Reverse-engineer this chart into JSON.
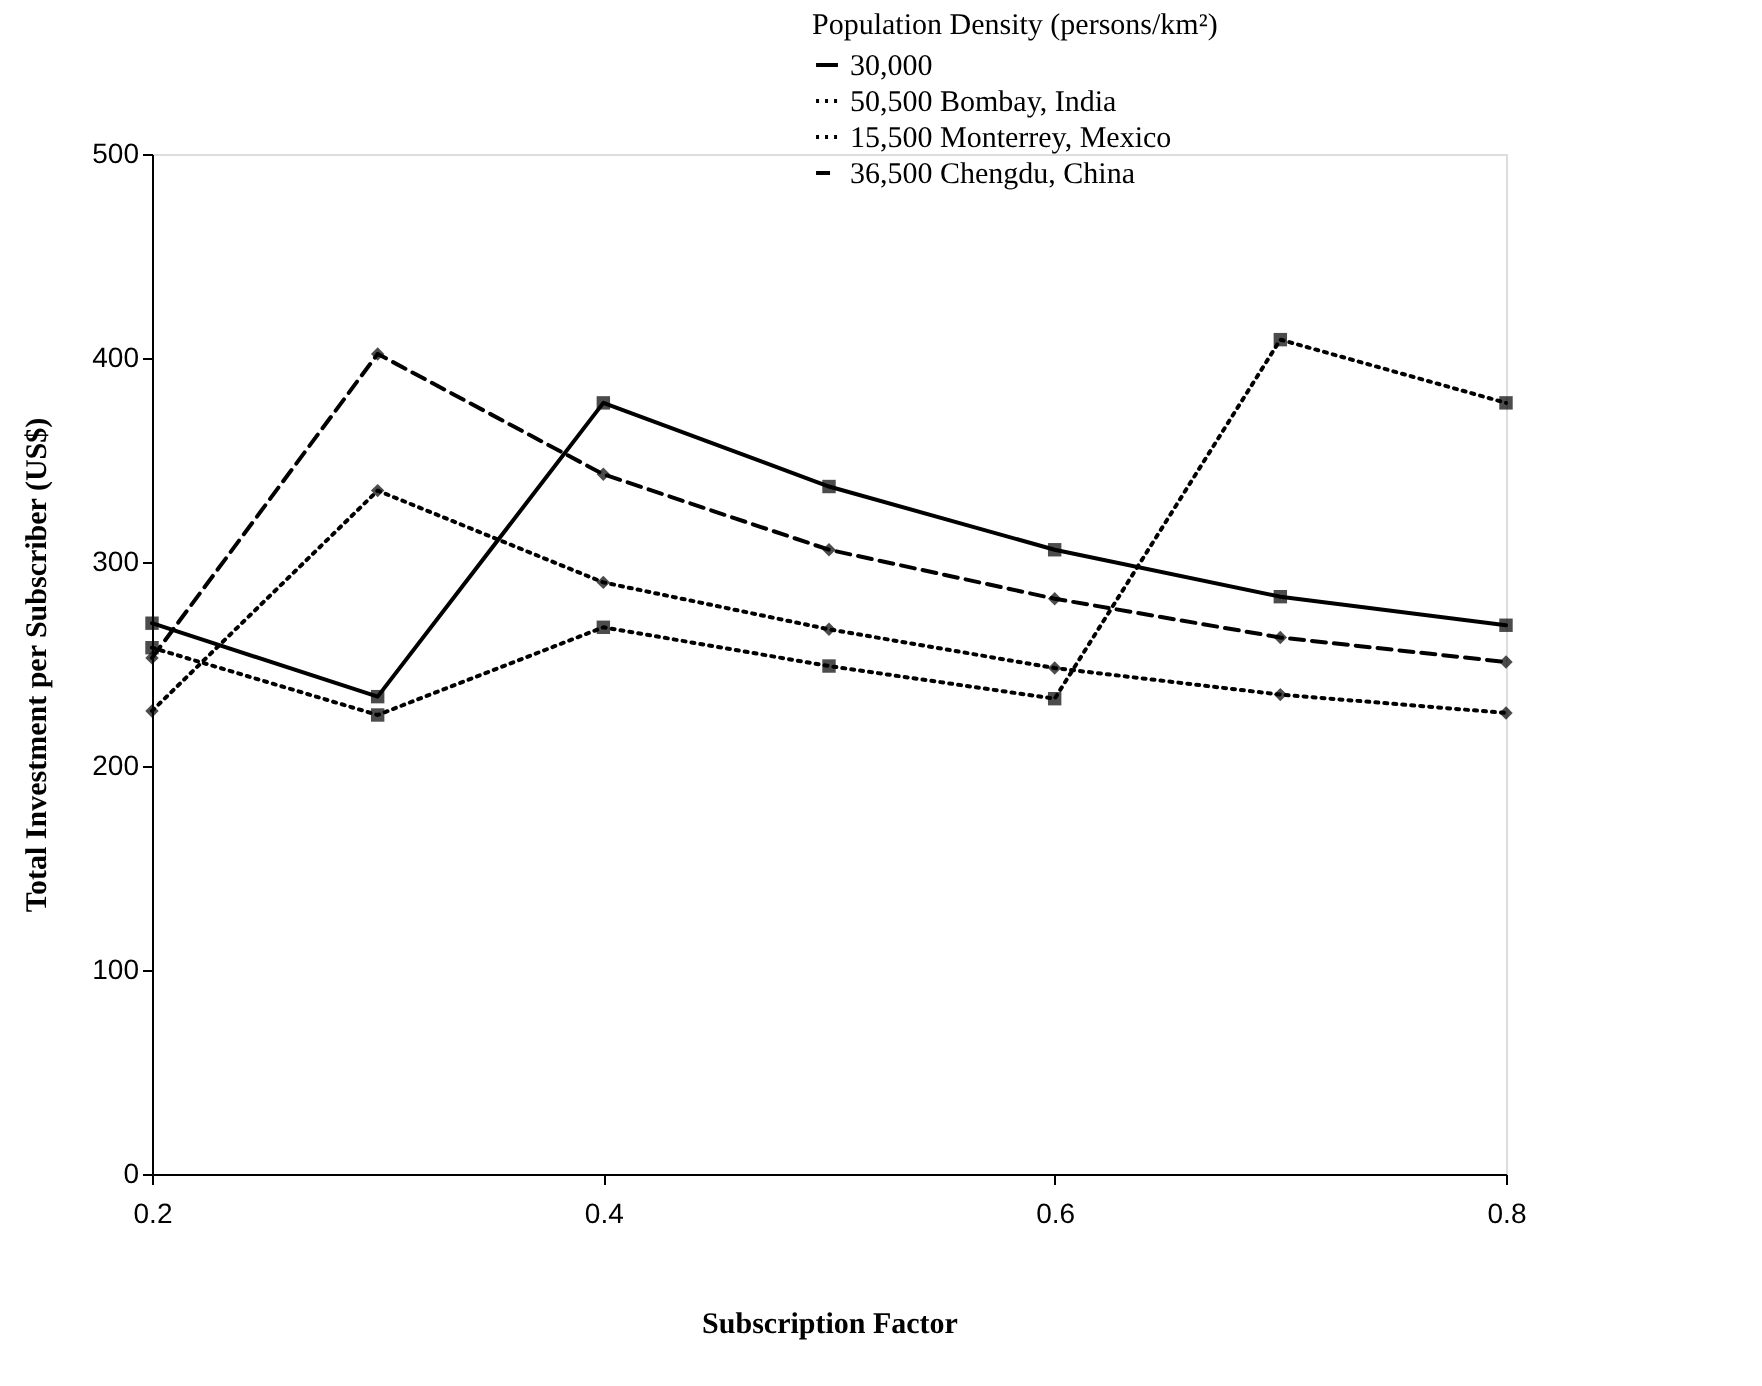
{
  "chart_data": {
    "type": "line",
    "xlabel": "Subscription Factor",
    "ylabel": "Total Investment per Subscriber (US$)",
    "legend_title": "Population Density (persons/km²)",
    "x": [
      0.2,
      0.3,
      0.4,
      0.5,
      0.6,
      0.7,
      0.8
    ],
    "series": [
      {
        "name": "30,000",
        "color": "#000000",
        "marker": "square",
        "line_style": "solid",
        "values": [
          270,
          234,
          378,
          337,
          306,
          283,
          269
        ]
      },
      {
        "name": "50,500   Bombay, India",
        "color": "#000000",
        "marker": "diamond",
        "line_style": "dotted",
        "values": [
          227,
          335,
          290,
          267,
          248,
          235,
          226
        ]
      },
      {
        "name": "15,500   Monterrey, Mexico",
        "color": "#000000",
        "marker": "square",
        "line_style": "dotted",
        "values": [
          258,
          225,
          268,
          249,
          233,
          409,
          378
        ]
      },
      {
        "name": "36,500   Chengdu, China",
        "color": "#000000",
        "marker": "diamond",
        "line_style": "dashed",
        "values": [
          253,
          402,
          343,
          306,
          282,
          263,
          251
        ]
      }
    ],
    "xlim": [
      0.2,
      0.8
    ],
    "xticks": [
      0.2,
      0.4,
      0.6,
      0.8
    ],
    "ylim": [
      0,
      500
    ],
    "yticks": [
      0,
      100,
      200,
      300,
      400,
      500
    ],
    "grid": false,
    "legend": "top right"
  }
}
